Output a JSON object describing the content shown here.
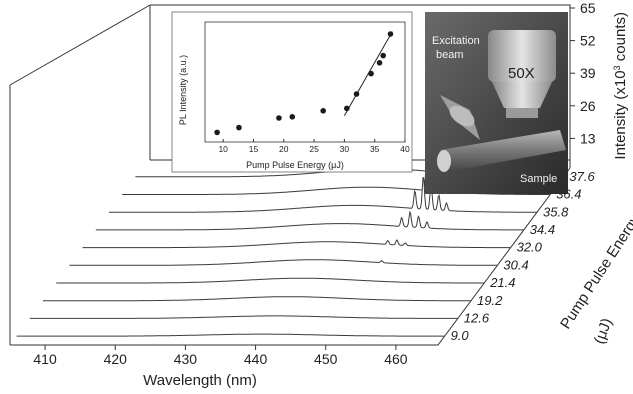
{
  "chart_data": {
    "type": "line",
    "variant": "waterfall-3d",
    "x_axis": {
      "label": "Wavelength (nm)",
      "ticks": [
        410,
        420,
        430,
        440,
        450,
        460
      ],
      "range": [
        405,
        466
      ]
    },
    "z_axis": {
      "label": "Intensity (x10",
      "label_sup": "3",
      "label_tail": " counts)",
      "ticks": [
        13,
        26,
        39,
        52,
        65
      ],
      "range": [
        0,
        65
      ]
    },
    "y_axis": {
      "label": "Pump Pulse Energy",
      "unit": "(μJ)",
      "ticks": [
        "9.0",
        "12.6",
        "19.2",
        "21.4",
        "30.4",
        "32.0",
        "34.4",
        "35.8",
        "36.4",
        "37.6"
      ]
    },
    "series": [
      {
        "energy": 9.0,
        "profile": "broad",
        "center": 440,
        "width": 11,
        "amplitude": 0.8,
        "peaks": []
      },
      {
        "energy": 12.6,
        "profile": "broad",
        "center": 440,
        "width": 11,
        "amplitude": 1.0,
        "peaks": []
      },
      {
        "energy": 19.2,
        "profile": "broad",
        "center": 440,
        "width": 11,
        "amplitude": 1.6,
        "peaks": []
      },
      {
        "energy": 21.4,
        "profile": "broad",
        "center": 440,
        "width": 11,
        "amplitude": 1.9,
        "peaks": []
      },
      {
        "energy": 30.4,
        "profile": "broad",
        "center": 440,
        "width": 11,
        "amplitude": 2.2,
        "peaks": [
          [
            449.5,
            0.8
          ]
        ]
      },
      {
        "energy": 32.0,
        "profile": "broad",
        "center": 440,
        "width": 11,
        "amplitude": 2.3,
        "peaks": [
          [
            448.5,
            1.5
          ],
          [
            449.8,
            2.0
          ],
          [
            451.0,
            1.0
          ]
        ]
      },
      {
        "energy": 34.4,
        "profile": "broad",
        "center": 440,
        "width": 11,
        "amplitude": 2.5,
        "peaks": [
          [
            448.6,
            3.5
          ],
          [
            449.8,
            6.0
          ],
          [
            451.0,
            4.5
          ],
          [
            452.2,
            2.5
          ]
        ]
      },
      {
        "energy": 35.8,
        "profile": "broad",
        "center": 440,
        "width": 11,
        "amplitude": 2.7,
        "peaks": [
          [
            448.6,
            7.0
          ],
          [
            449.8,
            13.0
          ],
          [
            450.9,
            10.0
          ],
          [
            452.0,
            6.0
          ],
          [
            453.1,
            3.0
          ]
        ]
      },
      {
        "energy": 36.4,
        "profile": "broad",
        "center": 440,
        "width": 11,
        "amplitude": 2.9,
        "peaks": [
          [
            448.4,
            12.0
          ],
          [
            449.5,
            22.0
          ],
          [
            450.6,
            20.0
          ],
          [
            451.7,
            13.0
          ],
          [
            452.8,
            7.0
          ]
        ]
      },
      {
        "energy": 37.6,
        "profile": "broad",
        "center": 440,
        "width": 11,
        "amplitude": 3.2,
        "peaks": [
          [
            448.3,
            22.0
          ],
          [
            449.4,
            32.0
          ],
          [
            450.5,
            35.0
          ],
          [
            451.6,
            40.0
          ],
          [
            452.7,
            50.0
          ],
          [
            453.8,
            24.0
          ],
          [
            454.9,
            10.0
          ]
        ]
      }
    ],
    "inset": {
      "type": "scatter",
      "xlabel": "Pump Pulse Energy (μJ)",
      "ylabel": "PL Intensity (a.u.)",
      "xticks": [
        10,
        15,
        20,
        25,
        30,
        35,
        40
      ],
      "xlim": [
        7,
        40
      ],
      "ylim": [
        0,
        100
      ],
      "points": [
        {
          "x": 9.0,
          "y": 8
        },
        {
          "x": 12.6,
          "y": 12
        },
        {
          "x": 19.2,
          "y": 20
        },
        {
          "x": 21.4,
          "y": 21
        },
        {
          "x": 26.5,
          "y": 26
        },
        {
          "x": 30.4,
          "y": 28
        },
        {
          "x": 32.0,
          "y": 40
        },
        {
          "x": 34.4,
          "y": 57
        },
        {
          "x": 35.8,
          "y": 66
        },
        {
          "x": 36.4,
          "y": 72
        },
        {
          "x": 37.6,
          "y": 90
        }
      ],
      "fit_line": [
        [
          30.0,
          22
        ],
        [
          37.9,
          92
        ]
      ]
    },
    "photo": {
      "excitation_label_1": "Excitation",
      "excitation_label_2": "beam",
      "lens_label": "50X",
      "sample_label": "Sample"
    }
  }
}
